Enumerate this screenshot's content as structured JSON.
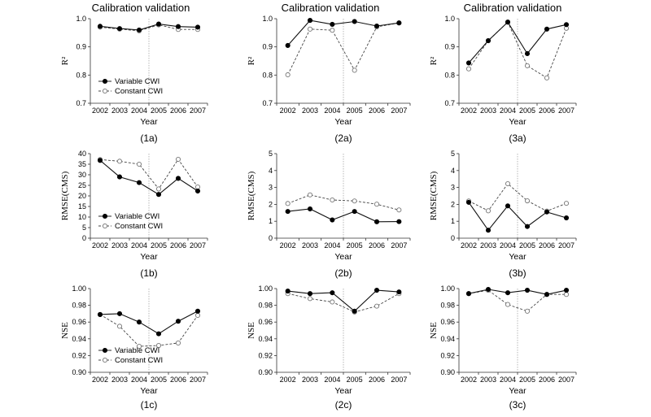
{
  "figure": {
    "column_titles": [
      "Calibration validation",
      "Calibration validation",
      "Calibration validation"
    ]
  },
  "chart_data": [
    {
      "id": "1a",
      "type": "line",
      "panel_label": "(1a)",
      "column_title": "Calibration validation",
      "xlabel": "Year",
      "ylabel": "R²",
      "categories": [
        "2002",
        "2003",
        "2004",
        "2005",
        "2006",
        "2007"
      ],
      "ylim": [
        0.7,
        1.0
      ],
      "yticks": [
        0.7,
        0.8,
        0.9,
        1.0
      ],
      "ytick_labels": [
        "0.7",
        "0.8",
        "0.9",
        "1.0"
      ],
      "divider_after_category": "2004",
      "legend": "lower-left",
      "series": [
        {
          "name": "Variable CWI",
          "style": "solid",
          "marker": "filled-circle",
          "values": [
            0.973,
            0.965,
            0.96,
            0.981,
            0.972,
            0.97
          ]
        },
        {
          "name": "Constant CWI",
          "style": "dashed",
          "marker": "open-circle",
          "values": [
            0.97,
            0.963,
            0.957,
            0.978,
            0.962,
            0.962
          ]
        }
      ]
    },
    {
      "id": "2a",
      "type": "line",
      "panel_label": "(2a)",
      "column_title": "Calibration validation",
      "xlabel": "Year",
      "ylabel": "R²",
      "categories": [
        "2002",
        "2003",
        "2004",
        "2005",
        "2006",
        "2007"
      ],
      "ylim": [
        0.7,
        1.0
      ],
      "yticks": [
        0.7,
        0.8,
        0.9,
        1.0
      ],
      "ytick_labels": [
        "0.7",
        "0.8",
        "0.9",
        "1.0"
      ],
      "divider_after_category": "2004",
      "legend": "none",
      "series": [
        {
          "name": "Variable CWI",
          "style": "solid",
          "marker": "filled-circle",
          "values": [
            0.905,
            0.994,
            0.98,
            0.99,
            0.974,
            0.985
          ]
        },
        {
          "name": "Constant CWI",
          "style": "dashed",
          "marker": "open-circle",
          "values": [
            0.801,
            0.963,
            0.959,
            0.817,
            0.971,
            0.985
          ]
        }
      ]
    },
    {
      "id": "3a",
      "type": "line",
      "panel_label": "(3a)",
      "column_title": "Calibration validation",
      "xlabel": "Year",
      "ylabel": "R²",
      "categories": [
        "2002",
        "2003",
        "2004",
        "2005",
        "2006",
        "2007"
      ],
      "ylim": [
        0.7,
        1.0
      ],
      "yticks": [
        0.7,
        0.8,
        0.9,
        1.0
      ],
      "ytick_labels": [
        "0.7",
        "0.8",
        "0.9",
        "1.0"
      ],
      "divider_after_category": "2004",
      "legend": "none",
      "series": [
        {
          "name": "Variable CWI",
          "style": "solid",
          "marker": "filled-circle",
          "values": [
            0.843,
            0.922,
            0.988,
            0.876,
            0.963,
            0.979
          ]
        },
        {
          "name": "Constant CWI",
          "style": "dashed",
          "marker": "open-circle",
          "values": [
            0.822,
            0.922,
            0.988,
            0.833,
            0.79,
            0.966
          ]
        }
      ]
    },
    {
      "id": "1b",
      "type": "line",
      "panel_label": "(1b)",
      "xlabel": "Year",
      "ylabel": "RMSE(CMS)",
      "categories": [
        "2002",
        "2003",
        "2004",
        "2005",
        "2006",
        "2007"
      ],
      "ylim": [
        0,
        40
      ],
      "yticks": [
        0,
        5,
        10,
        15,
        20,
        25,
        30,
        35,
        40
      ],
      "ytick_labels": [
        "0",
        "5",
        "10",
        "15",
        "20",
        "25",
        "30",
        "35",
        "40"
      ],
      "divider_after_category": "2004",
      "legend": "lower-left",
      "series": [
        {
          "name": "Variable CWI",
          "style": "solid",
          "marker": "filled-circle",
          "values": [
            36.8,
            29.0,
            26.3,
            20.7,
            28.3,
            22.3
          ]
        },
        {
          "name": "Constant CWI",
          "style": "dashed",
          "marker": "open-circle",
          "values": [
            37.2,
            36.4,
            35.0,
            23.3,
            37.3,
            24.2
          ]
        }
      ]
    },
    {
      "id": "2b",
      "type": "line",
      "panel_label": "(2b)",
      "xlabel": "Year",
      "ylabel": "RMSE(CMS)",
      "categories": [
        "2002",
        "2003",
        "2004",
        "2005",
        "2006",
        "2007"
      ],
      "ylim": [
        0,
        5
      ],
      "yticks": [
        0,
        1,
        2,
        3,
        4,
        5
      ],
      "ytick_labels": [
        "0",
        "1",
        "2",
        "3",
        "4",
        "5"
      ],
      "divider_after_category": "2004",
      "legend": "none",
      "series": [
        {
          "name": "Variable CWI",
          "style": "solid",
          "marker": "filled-circle",
          "values": [
            1.58,
            1.73,
            1.08,
            1.58,
            0.97,
            0.98
          ]
        },
        {
          "name": "Constant CWI",
          "style": "dashed",
          "marker": "open-circle",
          "values": [
            2.05,
            2.56,
            2.26,
            2.2,
            2.01,
            1.67
          ]
        }
      ]
    },
    {
      "id": "3b",
      "type": "line",
      "panel_label": "(3b)",
      "xlabel": "Year",
      "ylabel": "RMSE(CMS)",
      "categories": [
        "2002",
        "2003",
        "2004",
        "2005",
        "2006",
        "2007"
      ],
      "ylim": [
        0,
        5
      ],
      "yticks": [
        0,
        1,
        2,
        3,
        4,
        5
      ],
      "ytick_labels": [
        "0",
        "1",
        "2",
        "3",
        "4",
        "5"
      ],
      "divider_after_category": "2004",
      "legend": "none",
      "series": [
        {
          "name": "Variable CWI",
          "style": "solid",
          "marker": "filled-circle",
          "values": [
            2.12,
            0.47,
            1.91,
            0.69,
            1.55,
            1.2
          ]
        },
        {
          "name": "Constant CWI",
          "style": "dashed",
          "marker": "open-circle",
          "values": [
            2.2,
            1.62,
            3.22,
            2.21,
            1.6,
            2.06
          ]
        }
      ]
    },
    {
      "id": "1c",
      "type": "line",
      "panel_label": "(1c)",
      "xlabel": "Year",
      "ylabel": "NSE",
      "categories": [
        "2002",
        "2003",
        "2004",
        "2005",
        "2006",
        "2007"
      ],
      "ylim": [
        0.9,
        1.0
      ],
      "yticks": [
        0.9,
        0.92,
        0.94,
        0.96,
        0.98,
        1.0
      ],
      "ytick_labels": [
        "0.90",
        "0.92",
        "0.94",
        "0.96",
        "0.98",
        "1.00"
      ],
      "divider_after_category": "2004",
      "legend": "lower-left",
      "series": [
        {
          "name": "Variable CWI",
          "style": "solid",
          "marker": "filled-circle",
          "values": [
            0.969,
            0.97,
            0.96,
            0.946,
            0.961,
            0.973
          ]
        },
        {
          "name": "Constant CWI",
          "style": "dashed",
          "marker": "open-circle",
          "values": [
            0.969,
            0.955,
            0.931,
            0.932,
            0.935,
            0.968
          ]
        }
      ]
    },
    {
      "id": "2c",
      "type": "line",
      "panel_label": "(2c)",
      "xlabel": "Year",
      "ylabel": "NSE",
      "categories": [
        "2002",
        "2003",
        "2004",
        "2005",
        "2006",
        "2007"
      ],
      "ylim": [
        0.9,
        1.0
      ],
      "yticks": [
        0.9,
        0.92,
        0.94,
        0.96,
        0.98,
        1.0
      ],
      "ytick_labels": [
        "0.90",
        "0.92",
        "0.94",
        "0.96",
        "0.98",
        "1.00"
      ],
      "divider_after_category": "2004",
      "legend": "none",
      "series": [
        {
          "name": "Variable CWI",
          "style": "solid",
          "marker": "filled-circle",
          "values": [
            0.997,
            0.994,
            0.995,
            0.973,
            0.998,
            0.996
          ]
        },
        {
          "name": "Constant CWI",
          "style": "dashed",
          "marker": "open-circle",
          "values": [
            0.994,
            0.988,
            0.984,
            0.972,
            0.979,
            0.994
          ]
        }
      ]
    },
    {
      "id": "3c",
      "type": "line",
      "panel_label": "(3c)",
      "xlabel": "Year",
      "ylabel": "NSE",
      "categories": [
        "2002",
        "2003",
        "2004",
        "2005",
        "2006",
        "2007"
      ],
      "ylim": [
        0.9,
        1.0
      ],
      "yticks": [
        0.9,
        0.92,
        0.94,
        0.96,
        0.98,
        1.0
      ],
      "ytick_labels": [
        "0.90",
        "0.92",
        "0.94",
        "0.96",
        "0.98",
        "1.00"
      ],
      "divider_after_category": "2004",
      "legend": "none",
      "series": [
        {
          "name": "Variable CWI",
          "style": "solid",
          "marker": "filled-circle",
          "values": [
            0.994,
            0.999,
            0.995,
            0.998,
            0.993,
            0.998
          ]
        },
        {
          "name": "Constant CWI",
          "style": "dashed",
          "marker": "open-circle",
          "values": [
            0.994,
            0.998,
            0.981,
            0.973,
            0.993,
            0.993
          ]
        }
      ]
    }
  ]
}
